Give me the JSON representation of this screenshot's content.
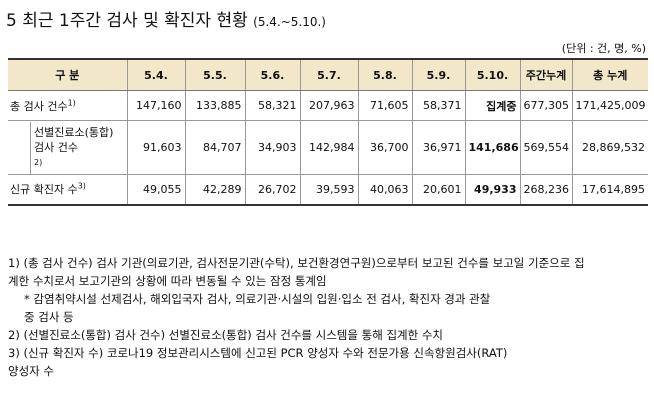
{
  "header": {
    "title": "5 최근 1주간 검사 및 확진자 현황",
    "period": "(5.4.~5.10.)",
    "unit": "(단위 : 건, 명, %)"
  },
  "table": {
    "columns": [
      "구 분",
      "5.4.",
      "5.5.",
      "5.6.",
      "5.7.",
      "5.8.",
      "5.9.",
      "5.10.",
      "주간누계",
      "총 누계"
    ],
    "rows": [
      {
        "label": "총 검사 건수",
        "note": "1)",
        "cells": [
          "147,160",
          "133,885",
          "58,321",
          "207,963",
          "71,605",
          "58,371",
          "집계중",
          "677,305",
          "171,425,009"
        ]
      },
      {
        "label": "선별진료소(통합) 검사 건수",
        "note": "2)",
        "cells": [
          "91,603",
          "84,707",
          "34,903",
          "142,984",
          "36,700",
          "36,971",
          "141,686",
          "569,554",
          "28,869,532"
        ]
      },
      {
        "label": "신규 확진자 수",
        "note": "3)",
        "cells": [
          "49,055",
          "42,289",
          "26,702",
          "39,593",
          "40,063",
          "20,601",
          "49,933",
          "268,236",
          "17,614,895"
        ]
      }
    ]
  },
  "notes": [
    {
      "lines": [
        "1) (총 검사 건수) 검사 기관(의료기관, 검사전문기관(수탁), 보건환경연구원)으로부터 보고된 건수를 보고일 기준으로 집",
        "계한 수치로서 보고기관의 상황에 따라 변동될 수 있는 잠정 통계임"
      ]
    },
    {
      "lines": [
        "* 감염취약시설 선제검사, 해외입국자 검사, 의료기관·시설의 입원·입소 전 검사, 확진자 경과 관찰",
        "중 검사 등"
      ]
    },
    {
      "lines": [
        "2) (선별진료소(통합) 검사 건수) 선별진료소(통합) 검사 건수를 시스템을 통해 집계한 수치"
      ]
    },
    {
      "lines": [
        "3) (신규 확진자 수) 코로나19 정보관리시스템에 신고된 PCR 양성자 수와 전문가용 신속항원검사(RAT)",
        "양성자 수"
      ]
    }
  ]
}
